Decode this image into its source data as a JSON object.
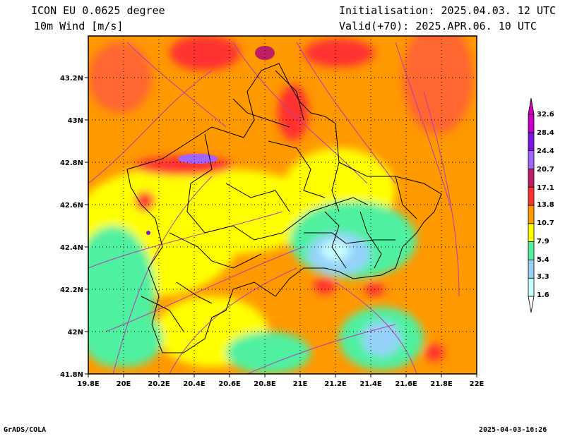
{
  "header": {
    "model": "ICON EU 0.0625 degree",
    "variable": "10m Wind [m/s]",
    "init": "Initialisation: 2025.04.03. 12 UTC",
    "valid": "Valid(+70): 2025.APR.06. 10 UTC"
  },
  "map": {
    "lon_ticks": [
      "19.8E",
      "20E",
      "20.2E",
      "20.4E",
      "20.6E",
      "20.8E",
      "21E",
      "21.2E",
      "21.4E",
      "21.6E",
      "21.8E",
      "22E"
    ],
    "lat_ticks": [
      "43.2N",
      "43N",
      "42.8N",
      "42.6N",
      "42.4N",
      "42.2N",
      "42N",
      "41.8N"
    ],
    "lon_range": [
      19.8,
      22.0
    ],
    "lat_range": [
      41.8,
      43.4
    ]
  },
  "colorbar": {
    "levels": [
      "32.6",
      "28.4",
      "24.4",
      "20.7",
      "17.1",
      "13.8",
      "10.7",
      "7.9",
      "5.4",
      "3.3",
      "1.6"
    ],
    "colors": [
      "#c8ffff",
      "#96d2fa",
      "#50f0a0",
      "#ffff00",
      "#ff9900",
      "#ff3232",
      "#c01e64",
      "#a064ff",
      "#7d14e6",
      "#c800c8"
    ]
  },
  "footer": {
    "left": "GrADS/COLA",
    "right": "2025-04-03-16:26"
  }
}
